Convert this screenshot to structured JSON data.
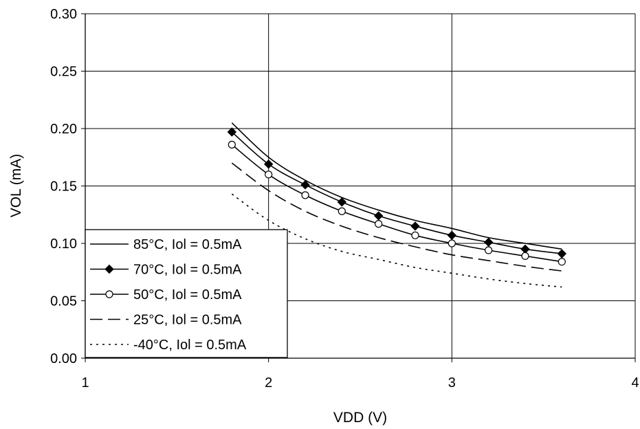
{
  "chart_data": {
    "type": "line",
    "xlabel": "VDD (V)",
    "ylabel": "VOL (mA)",
    "xlim": [
      1,
      4
    ],
    "ylim": [
      0,
      0.3
    ],
    "x_ticks": [
      1,
      2,
      3,
      4
    ],
    "x_tick_labels": [
      "1",
      "2",
      "3",
      "4"
    ],
    "y_ticks": [
      0.0,
      0.05,
      0.1,
      0.15,
      0.2,
      0.25,
      0.3
    ],
    "y_tick_labels": [
      "0.00",
      "0.05",
      "0.10",
      "0.15",
      "0.20",
      "0.25",
      "0.30"
    ],
    "grid": true,
    "legend_position": "bottom-left",
    "x": [
      1.8,
      2.0,
      2.2,
      2.4,
      2.6,
      2.8,
      3.0,
      3.2,
      3.4,
      3.6
    ],
    "series": [
      {
        "name": "85°C, Iol = 0.5mA",
        "style": "solid",
        "marker": "none",
        "color": "#000000",
        "values": [
          0.205,
          0.175,
          0.155,
          0.14,
          0.129,
          0.12,
          0.113,
          0.105,
          0.1,
          0.095
        ]
      },
      {
        "name": "70°C, Iol = 0.5mA",
        "style": "solid",
        "marker": "diamond",
        "color": "#000000",
        "values": [
          0.197,
          0.169,
          0.151,
          0.136,
          0.124,
          0.115,
          0.107,
          0.101,
          0.095,
          0.091
        ]
      },
      {
        "name": "50°C, Iol = 0.5mA",
        "style": "solid",
        "marker": "open-circle",
        "color": "#000000",
        "values": [
          0.186,
          0.16,
          0.142,
          0.128,
          0.117,
          0.107,
          0.1,
          0.094,
          0.089,
          0.084
        ]
      },
      {
        "name": "25°C, Iol = 0.5mA",
        "style": "dashed",
        "marker": "none",
        "color": "#000000",
        "values": [
          0.17,
          0.146,
          0.128,
          0.115,
          0.105,
          0.097,
          0.09,
          0.085,
          0.08,
          0.076
        ]
      },
      {
        "name": "-40°C, Iol = 0.5mA",
        "style": "dotted",
        "marker": "none",
        "color": "#000000",
        "values": [
          0.143,
          0.12,
          0.104,
          0.093,
          0.086,
          0.079,
          0.074,
          0.069,
          0.065,
          0.062
        ]
      }
    ]
  }
}
